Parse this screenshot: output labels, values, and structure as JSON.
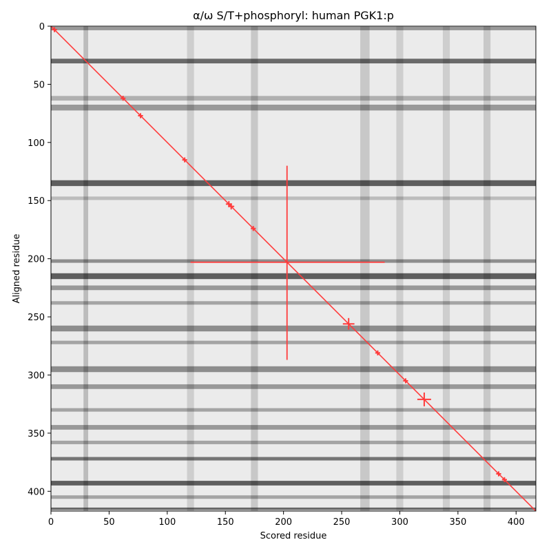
{
  "chart_data": {
    "type": "heatmap",
    "title": "α/ω S/T+phosphoryl: human PGK1:p",
    "xlabel": "Scored residue",
    "ylabel": "Aligned residue",
    "xlim": [
      0,
      417
    ],
    "ylim": [
      417,
      0
    ],
    "x_ticks": [
      0,
      50,
      100,
      150,
      200,
      250,
      300,
      350,
      400
    ],
    "y_ticks": [
      0,
      50,
      100,
      150,
      200,
      250,
      300,
      350,
      400
    ],
    "colormap": "grayscale (darker = higher)",
    "grid": false,
    "dark_rows": [
      {
        "y": 2,
        "intensity": 0.35,
        "width": 3
      },
      {
        "y": 30,
        "intensity": 0.55,
        "width": 4
      },
      {
        "y": 62,
        "intensity": 0.25,
        "width": 4
      },
      {
        "y": 70,
        "intensity": 0.35,
        "width": 5
      },
      {
        "y": 135,
        "intensity": 0.6,
        "width": 5
      },
      {
        "y": 148,
        "intensity": 0.2,
        "width": 3
      },
      {
        "y": 202,
        "intensity": 0.4,
        "width": 3
      },
      {
        "y": 215,
        "intensity": 0.6,
        "width": 5
      },
      {
        "y": 225,
        "intensity": 0.35,
        "width": 4
      },
      {
        "y": 238,
        "intensity": 0.3,
        "width": 3
      },
      {
        "y": 260,
        "intensity": 0.4,
        "width": 5
      },
      {
        "y": 272,
        "intensity": 0.3,
        "width": 3
      },
      {
        "y": 295,
        "intensity": 0.4,
        "width": 5
      },
      {
        "y": 310,
        "intensity": 0.35,
        "width": 4
      },
      {
        "y": 330,
        "intensity": 0.3,
        "width": 3
      },
      {
        "y": 345,
        "intensity": 0.35,
        "width": 4
      },
      {
        "y": 358,
        "intensity": 0.3,
        "width": 3
      },
      {
        "y": 372,
        "intensity": 0.5,
        "width": 3
      },
      {
        "y": 393,
        "intensity": 0.6,
        "width": 4
      },
      {
        "y": 405,
        "intensity": 0.3,
        "width": 3
      },
      {
        "y": 415,
        "intensity": 0.55,
        "width": 2
      }
    ],
    "dark_cols": [
      {
        "x": 30,
        "intensity": 0.2,
        "width": 4
      },
      {
        "x": 120,
        "intensity": 0.12,
        "width": 6
      },
      {
        "x": 175,
        "intensity": 0.15,
        "width": 6
      },
      {
        "x": 270,
        "intensity": 0.15,
        "width": 8
      },
      {
        "x": 300,
        "intensity": 0.12,
        "width": 6
      },
      {
        "x": 340,
        "intensity": 0.12,
        "width": 6
      },
      {
        "x": 375,
        "intensity": 0.15,
        "width": 6
      }
    ],
    "overlay_color": "#ff3b3b",
    "diagonal": {
      "from": [
        0,
        0
      ],
      "to": [
        417,
        417
      ]
    },
    "crosshair": {
      "x": 203,
      "y": 203,
      "x_range": [
        120,
        287
      ],
      "y_range": [
        120,
        287
      ]
    },
    "markers": [
      {
        "x": 3,
        "y": 3,
        "size": 1
      },
      {
        "x": 62,
        "y": 62,
        "size": 1
      },
      {
        "x": 77,
        "y": 77,
        "size": 1
      },
      {
        "x": 115,
        "y": 115,
        "size": 1
      },
      {
        "x": 153,
        "y": 153,
        "size": 1.5
      },
      {
        "x": 155,
        "y": 155,
        "size": 1.5
      },
      {
        "x": 174,
        "y": 174,
        "size": 1
      },
      {
        "x": 256,
        "y": 256,
        "size": 4
      },
      {
        "x": 281,
        "y": 281,
        "size": 1
      },
      {
        "x": 305,
        "y": 305,
        "size": 1
      },
      {
        "x": 321,
        "y": 321,
        "size": 5
      },
      {
        "x": 385,
        "y": 385,
        "size": 1
      },
      {
        "x": 390,
        "y": 390,
        "size": 1
      }
    ]
  }
}
